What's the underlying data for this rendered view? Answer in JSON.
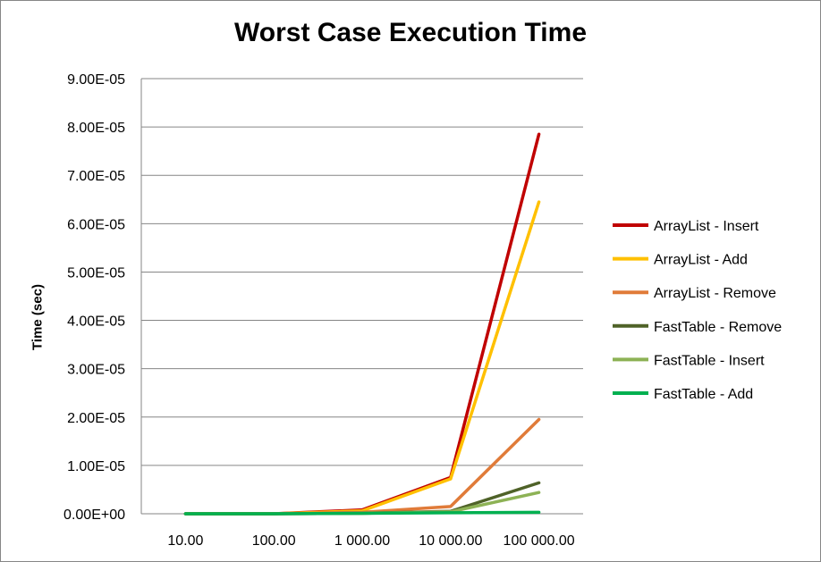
{
  "chart_data": {
    "type": "line",
    "title": "Worst Case Execution Time",
    "xlabel": "",
    "ylabel": "Time (sec)",
    "categories": [
      "10.00",
      "100.00",
      "1 000.00",
      "10 000.00",
      "100 000.00"
    ],
    "ylim": [
      0,
      9e-05
    ],
    "yticks": [
      "0.00E+00",
      "1.00E-05",
      "2.00E-05",
      "3.00E-05",
      "4.00E-05",
      "5.00E-05",
      "6.00E-05",
      "7.00E-05",
      "8.00E-05",
      "9.00E-05"
    ],
    "grid": "horizontal",
    "legend": "right",
    "series": [
      {
        "name": "ArrayList - Insert",
        "color": "#C00000",
        "values": [
          0,
          0,
          8e-07,
          7.5e-06,
          7.85e-05
        ]
      },
      {
        "name": "ArrayList - Add",
        "color": "#FFC000",
        "values": [
          0,
          0,
          6e-07,
          7.2e-06,
          6.45e-05
        ]
      },
      {
        "name": "ArrayList - Remove",
        "color": "#E07B39",
        "values": [
          0,
          0,
          3e-07,
          1.5e-06,
          1.95e-05
        ]
      },
      {
        "name": "FastTable - Remove",
        "color": "#4F6228",
        "values": [
          0,
          0,
          1e-07,
          5e-07,
          6.4e-06
        ]
      },
      {
        "name": "FastTable - Insert",
        "color": "#8DB255",
        "values": [
          0,
          0,
          1e-07,
          4e-07,
          4.4e-06
        ]
      },
      {
        "name": "FastTable - Add",
        "color": "#00B050",
        "values": [
          0,
          0,
          1e-07,
          2e-07,
          3e-07
        ]
      }
    ]
  }
}
